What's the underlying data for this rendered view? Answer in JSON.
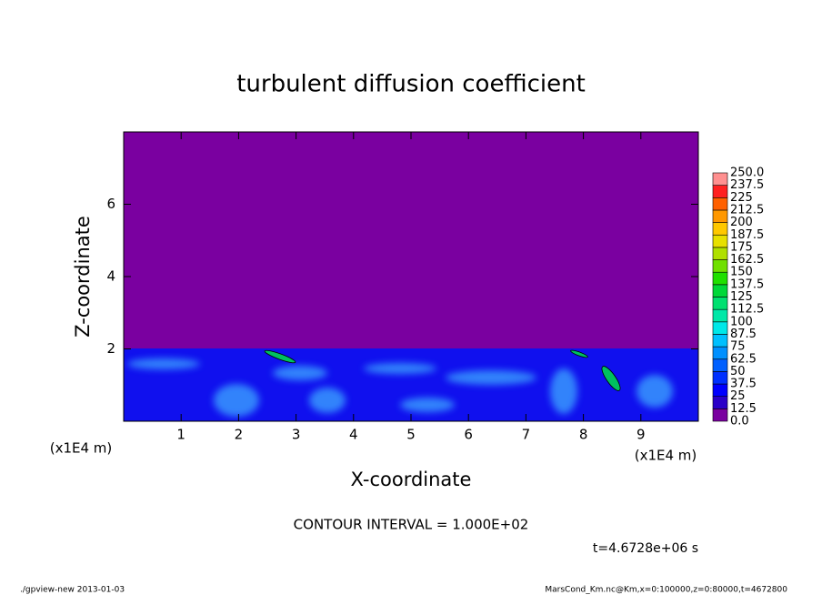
{
  "chart_data": {
    "type": "contour",
    "title": "turbulent diffusion coefficient",
    "xlabel": "X-coordinate",
    "ylabel": "Z-coordinate",
    "xunit": "(x1E4 m)",
    "yunit": "(x1E4 m)",
    "xlim": [
      0,
      10
    ],
    "ylim": [
      0,
      8
    ],
    "xticks": [
      1,
      2,
      3,
      4,
      5,
      6,
      7,
      8,
      9
    ],
    "yticks": [
      2,
      4,
      6
    ],
    "contour_interval": "CONTOUR INTERVAL = 1.000E+02",
    "time": "t=4.6728e+06 s",
    "colorbar": {
      "levels": [
        {
          "value": 0,
          "label": "0.0"
        },
        12.5,
        25,
        37.5,
        50,
        62.5,
        75,
        87.5,
        100,
        112.5,
        125,
        137.5,
        150,
        162.5,
        175,
        187.5,
        200,
        212.5,
        225,
        237.5,
        {
          "value": 250,
          "label": "250.0"
        }
      ],
      "colors": [
        "#7a00a0",
        "#2a00c8",
        "#0000ff",
        "#0030ff",
        "#0060ff",
        "#0090ff",
        "#00c0ff",
        "#00e8e8",
        "#00e8a8",
        "#00e070",
        "#00d838",
        "#20e000",
        "#70e000",
        "#b0e000",
        "#e8e000",
        "#ffc800",
        "#ff9800",
        "#ff6000",
        "#ff2020",
        "#ff9090"
      ]
    },
    "footer_left": "./gpview-new  2013-01-03",
    "footer_right": "MarsCond_Km.nc@Km,x=0:100000,z=0:80000,t=4672800"
  }
}
